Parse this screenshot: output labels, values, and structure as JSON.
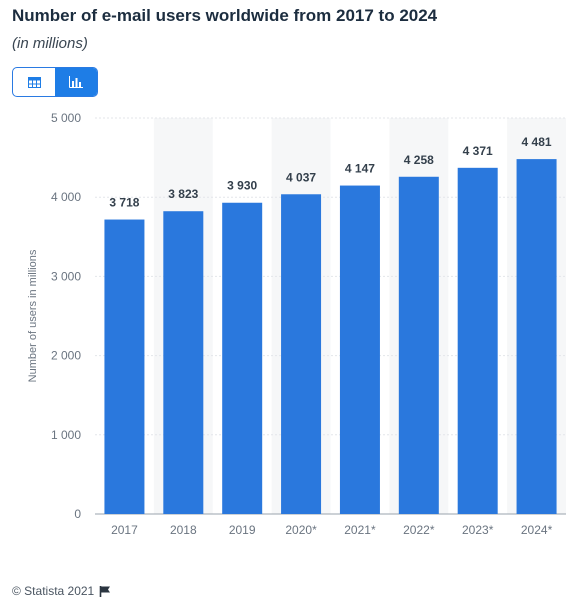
{
  "chart_data": {
    "type": "bar",
    "title": "Number of e-mail users worldwide from 2017 to 2024",
    "subtitle": "(in millions)",
    "ylabel": "Number of users in millions",
    "categories": [
      "2017",
      "2018",
      "2019",
      "2020*",
      "2021*",
      "2022*",
      "2023*",
      "2024*"
    ],
    "values": [
      3718,
      3823,
      3930,
      4037,
      4147,
      4258,
      4371,
      4481
    ],
    "value_labels": [
      "3 718",
      "3 823",
      "3 930",
      "4 037",
      "4 147",
      "4 258",
      "4 371",
      "4 481"
    ],
    "yticks": [
      0,
      1000,
      2000,
      3000,
      4000,
      5000
    ],
    "ytick_labels": [
      "0",
      "1 000",
      "2 000",
      "3 000",
      "4 000",
      "5 000"
    ],
    "ylim": [
      0,
      5000
    ],
    "grid": true,
    "bar_color": "#2a78dd",
    "band_color": "#f6f7f8"
  },
  "toolbar": {
    "table_icon": "table-icon",
    "chart_icon": "bar-chart-icon",
    "active_color": "#1e7de6"
  },
  "footer": {
    "copyright": "© Statista 2021",
    "flag_icon": "flag-icon"
  }
}
